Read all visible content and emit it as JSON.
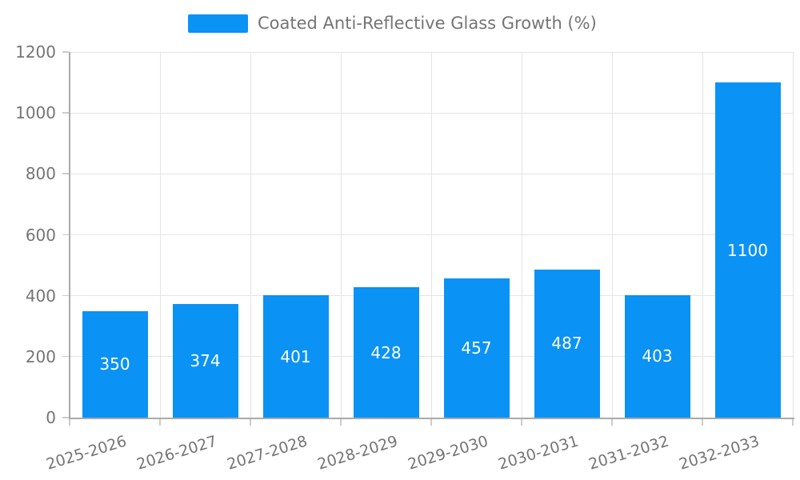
{
  "legend": {
    "label": "Coated Anti-Reflective Glass Growth (%)"
  },
  "colors": {
    "background": "#ffffff",
    "bar": "#0b92f5",
    "axis_line": "#aaaaaa",
    "grid_line": "#e4e4e4",
    "tick_line": "#cccccc",
    "axis_text": "#757575",
    "bar_value_text": "#ffffff"
  },
  "chart_data": {
    "type": "bar",
    "title": "Coated Anti-Reflective Glass Growth (%)",
    "series_name": "Coated Anti-Reflective Glass Growth (%)",
    "categories": [
      "2025-2026",
      "2026-2027",
      "2027-2028",
      "2028-2029",
      "2029-2030",
      "2030-2031",
      "2031-2032",
      "2032-2033"
    ],
    "values": [
      350,
      374,
      401,
      428,
      457,
      487,
      403,
      1100
    ],
    "xlabel": "",
    "ylabel": "",
    "ylim": [
      0,
      1200
    ],
    "ytick_step": 200,
    "ytick_labels": [
      "0",
      "200",
      "400",
      "600",
      "800",
      "1000",
      "1200"
    ],
    "grid": true,
    "legend_position": "top-center",
    "value_labels": "inside-center",
    "x_label_rotation_deg": -17
  }
}
